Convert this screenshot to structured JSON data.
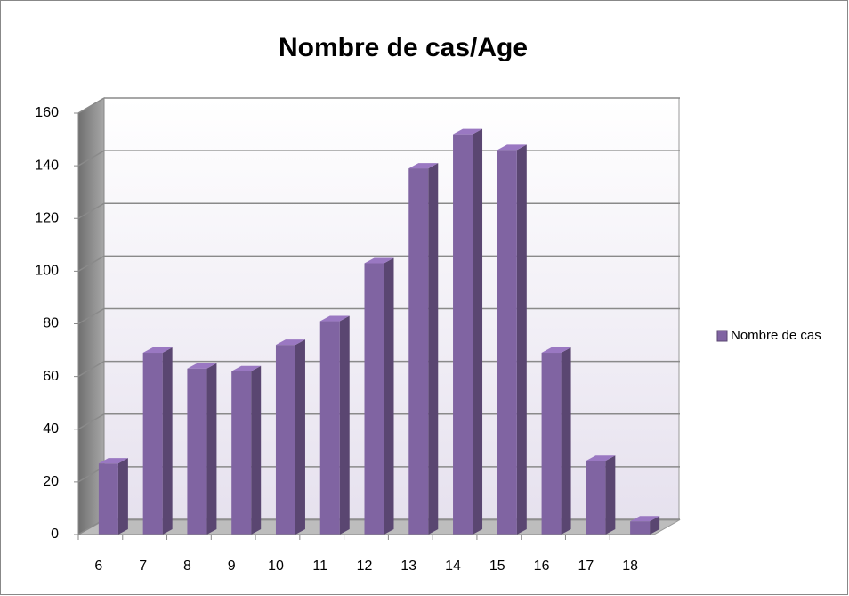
{
  "chart_data": {
    "type": "bar",
    "title": "Nombre de cas/Age",
    "categories": [
      "6",
      "7",
      "8",
      "9",
      "10",
      "11",
      "12",
      "13",
      "14",
      "15",
      "16",
      "17",
      "18"
    ],
    "series": [
      {
        "name": "Nombre de cas",
        "color": "#8064a2",
        "values": [
          27,
          69,
          63,
          62,
          72,
          81,
          103,
          139,
          152,
          146,
          69,
          28,
          5
        ]
      }
    ],
    "ylim": [
      0,
      160
    ],
    "yticks": [
      0,
      20,
      40,
      60,
      80,
      100,
      120,
      140,
      160
    ],
    "grid": true,
    "legend": "right"
  }
}
